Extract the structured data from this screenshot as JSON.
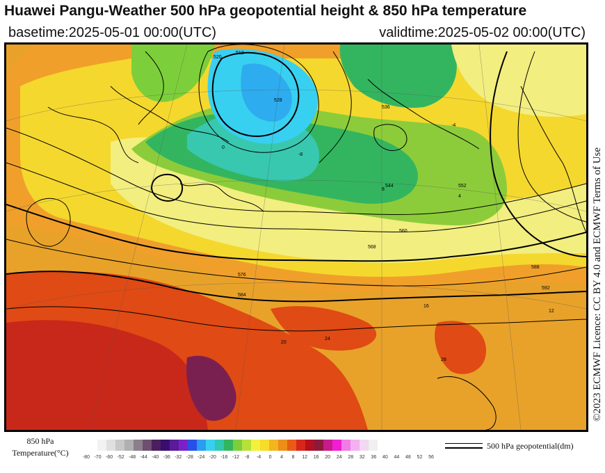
{
  "header": {
    "title": "Huawei Pangu-Weather 500 hPa geopotential height & 850 hPa temperature",
    "basetime": "basetime:2025-05-01 00:00(UTC)",
    "validtime": "validtime:2025-05-02 00:00(UTC)"
  },
  "licence": "©2023 ECMWF Licence: CC BY 4.0 and ECMWF Terms of Use",
  "map": {
    "contour_labels": [
      "512",
      "520",
      "528",
      "536",
      "544",
      "552",
      "560",
      "568",
      "576",
      "584",
      "588",
      "592"
    ],
    "temperature_labels": [
      "-8",
      "-4",
      "0",
      "4",
      "8",
      "12",
      "16",
      "20",
      "24",
      "28"
    ]
  },
  "legend": {
    "temperature_label_line1": "850 hPa",
    "temperature_label_line2": "Temperature(°C)",
    "ticks": [
      "-80",
      "-70",
      "-60",
      "-52",
      "-48",
      "-44",
      "-40",
      "-36",
      "-32",
      "-28",
      "-24",
      "-20",
      "-16",
      "-12",
      "-8",
      "-4",
      "0",
      "4",
      "8",
      "12",
      "16",
      "20",
      "24",
      "28",
      "32",
      "36",
      "40",
      "44",
      "48",
      "52",
      "56"
    ],
    "colors": [
      "#f2f2f2",
      "#e0e0e0",
      "#c8c8c8",
      "#b0b0b0",
      "#8c7f8c",
      "#6f4f6f",
      "#4b1f5f",
      "#3a0e6e",
      "#5a1a9a",
      "#7a22c8",
      "#2850e8",
      "#2a9df0",
      "#38d0f0",
      "#30c8b0",
      "#33b560",
      "#7ccf3a",
      "#b8e03a",
      "#f2f23a",
      "#f7dc2a",
      "#f2b61e",
      "#ee8d1a",
      "#e85c15",
      "#d8261a",
      "#b4101e",
      "#8c1a3c",
      "#c81a8a",
      "#f01ed2",
      "#f07ce6",
      "#f4b0f0",
      "#f2d8f2",
      "#f0f0f0"
    ],
    "contour_label": "500 hPa geopotential(dm)"
  }
}
